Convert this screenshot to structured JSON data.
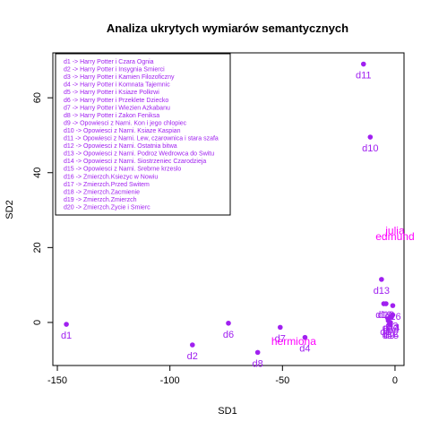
{
  "chart_data": {
    "type": "scatter",
    "title": "Analiza ukrytych wymiarów semantycznych",
    "xlabel": "SD1",
    "ylabel": "SD2",
    "xlim": [
      -152,
      4
    ],
    "ylim": [
      -11.5,
      72
    ],
    "x_ticks": [
      -150,
      -100,
      -50,
      0
    ],
    "y_ticks": [
      0,
      20,
      40,
      60
    ],
    "point_color": "#a020f0",
    "word_color": "#ff00ff",
    "legend_position": "top-left",
    "documents": [
      {
        "label": "d1",
        "x": -146,
        "y": -0.5
      },
      {
        "label": "d2",
        "x": -90,
        "y": -6
      },
      {
        "label": "d3",
        "x": -1,
        "y": 2
      },
      {
        "label": "d4",
        "x": -40,
        "y": -4
      },
      {
        "label": "d5",
        "x": -3,
        "y": 1
      },
      {
        "label": "d6",
        "x": -74,
        "y": -0.2
      },
      {
        "label": "d7",
        "x": -51,
        "y": -1.3
      },
      {
        "label": "d8",
        "x": -61,
        "y": -8
      },
      {
        "label": "d9",
        "x": -2.5,
        "y": -0.5
      },
      {
        "label": "d10",
        "x": -11,
        "y": 49.5
      },
      {
        "label": "d11",
        "x": -14,
        "y": 69
      },
      {
        "label": "d12",
        "x": -2,
        "y": 0
      },
      {
        "label": "d13",
        "x": -6,
        "y": 11.5
      },
      {
        "label": "d14",
        "x": -1.5,
        "y": 1.5
      },
      {
        "label": "d15",
        "x": -2,
        "y": -0.5
      },
      {
        "label": "d16",
        "x": -1,
        "y": 4.5
      },
      {
        "label": "d17",
        "x": -3,
        "y": 0.5
      },
      {
        "label": "d18",
        "x": -4,
        "y": 5
      },
      {
        "label": "d19",
        "x": -5,
        "y": 5
      },
      {
        "label": "d20",
        "x": -2,
        "y": 1.5
      }
    ],
    "terms": [
      {
        "label": "julia",
        "x": 0,
        "y": 24.5
      },
      {
        "label": "edmund",
        "x": 0,
        "y": 23
      },
      {
        "label": "hermiona",
        "x": -45,
        "y": -5
      }
    ],
    "legend": [
      "d1 -> Harry Potter i Czara Ognia",
      "d2 -> Harry Potter i Insygnia Smierci",
      "d3 -> Harry Potter i Kamien Filozoficzny",
      "d4 -> Harry Potter i Komnata Tajemnic",
      "d5 -> Harry Potter i Ksiaze Polkrwi",
      "d6 -> Harry Potter i Przeklete Dziecko",
      "d7 -> Harry Potter i Wiezien Azkabanu",
      "d8 -> Harry Potter i Zakon Feniksa",
      "d9 -> Opowiesci z Narni. Kon i jego chlopiec",
      "d10 -> Opowiesci z Narni. Ksiaze Kaspian",
      "d11 -> Opowiesci z Narni. Lew, czarownica i stara szafa",
      "d12 -> Opowiesci z Narni. Ostatnia bitwa",
      "d13 -> Opowiesci z Narni. Podroz Wedrowca do Switu",
      "d14 -> Opowiesci z Narni. Siostrzeniec Czarodzieja",
      "d15 -> Opowiesci z Narni. Srebrne krzeslo",
      "d16 -> Zmierzch.Ksiezyc w Nowiu",
      "d17 -> Zmierzch.Przed Switem",
      "d18 -> Zmierzch.Zacmienie",
      "d19 -> Zmierzch.Zmierzch",
      "d20 -> Zmierzch.Zycie i Smierc"
    ]
  }
}
